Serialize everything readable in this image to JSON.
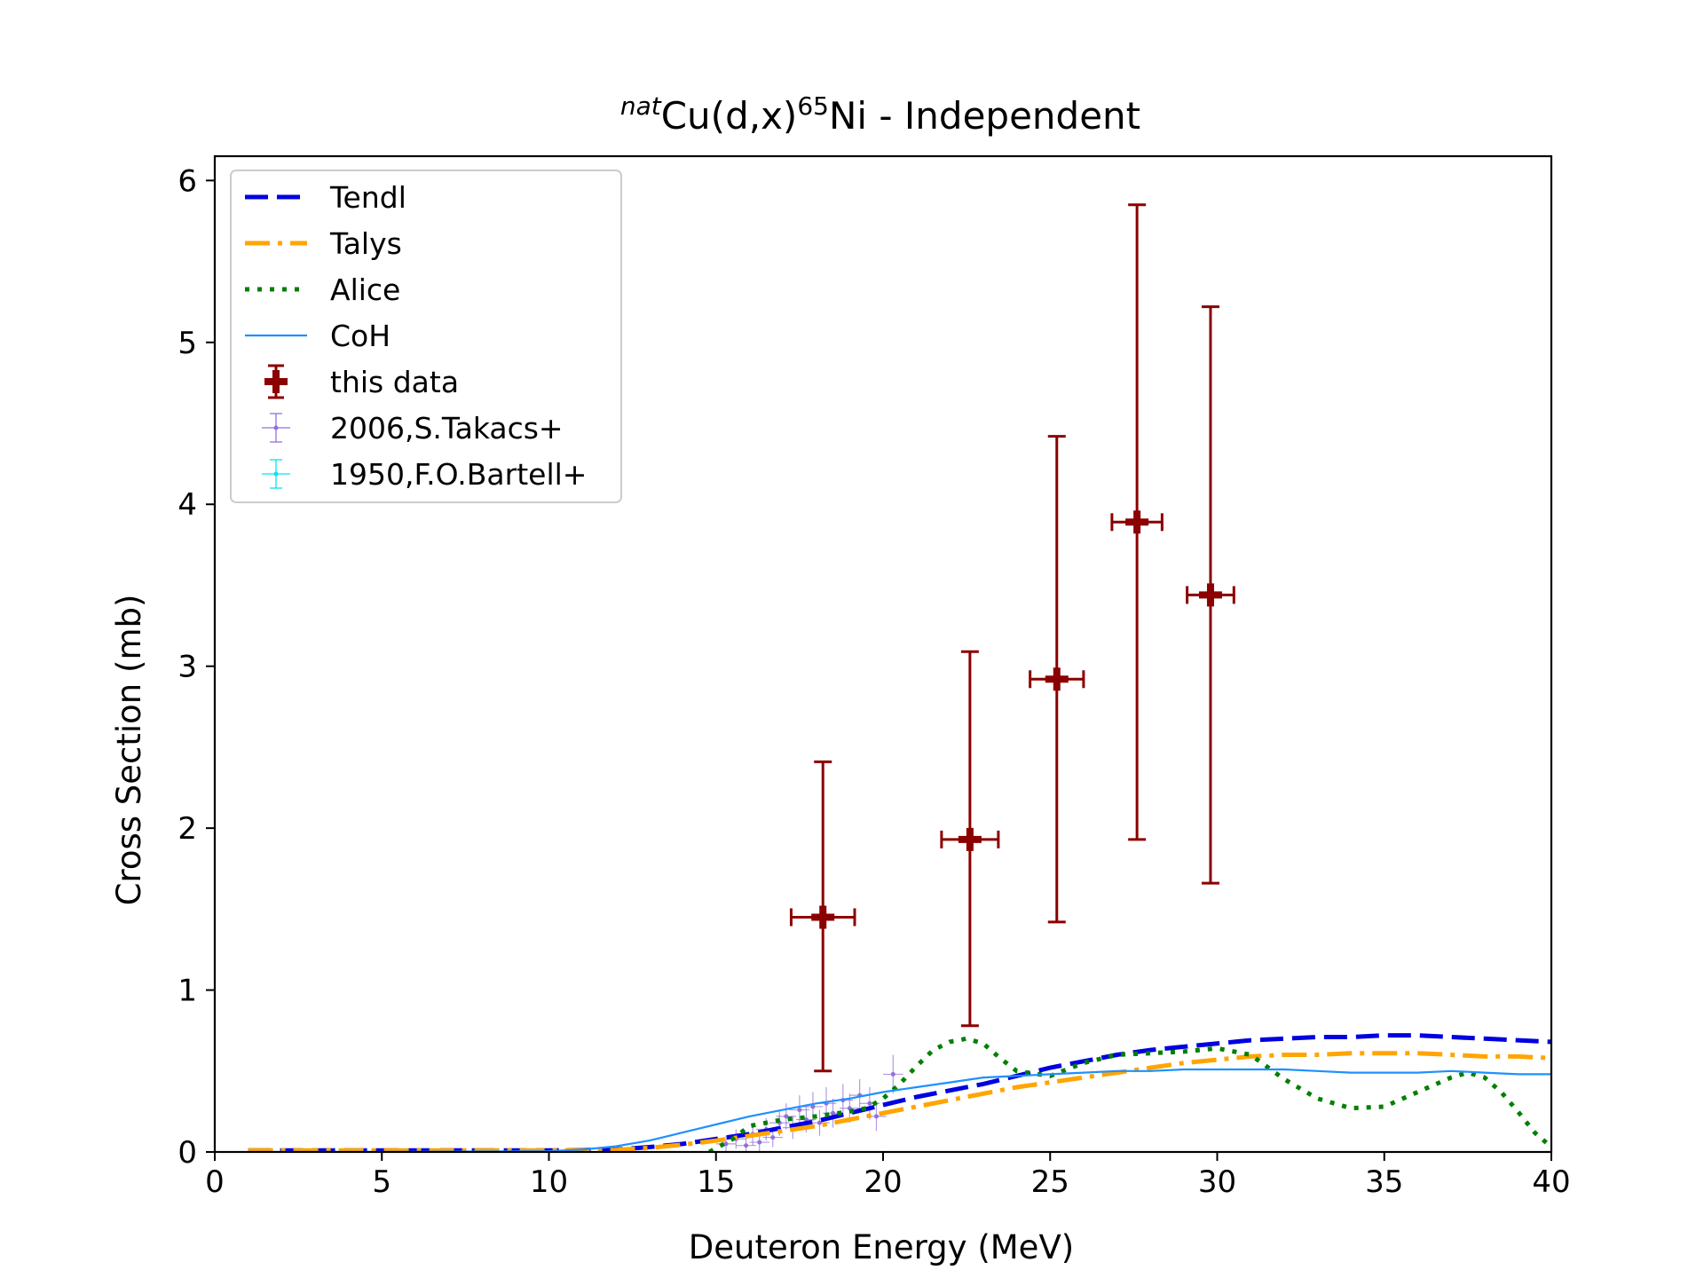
{
  "chart_data": {
    "type": "scatter",
    "title": {
      "prefix": "nat",
      "main": "Cu(d,x)",
      "mass": "65",
      "element": "Ni",
      "suffix": " - Independent"
    },
    "xlabel": "Deuteron Energy (MeV)",
    "ylabel": "Cross Section (mb)",
    "xlim": [
      0,
      40
    ],
    "ylim": [
      0,
      6.15
    ],
    "xticks": [
      0,
      5,
      10,
      15,
      20,
      25,
      30,
      35,
      40
    ],
    "yticks": [
      0,
      1,
      2,
      3,
      4,
      5,
      6
    ],
    "grid": false,
    "legend_position": "top-left",
    "series": [
      {
        "name": "Tendl",
        "kind": "line",
        "style": "dashed",
        "color": "#0000e0",
        "x": [
          1,
          5,
          10,
          12,
          13,
          14,
          15,
          16,
          17,
          18,
          19,
          20,
          21,
          22,
          23,
          24,
          25,
          26,
          27,
          28,
          29,
          30,
          31,
          32,
          33,
          34,
          35,
          36,
          37,
          38,
          39,
          40
        ],
        "y": [
          0.01,
          0.01,
          0.01,
          0.015,
          0.03,
          0.05,
          0.08,
          0.11,
          0.15,
          0.19,
          0.24,
          0.29,
          0.34,
          0.38,
          0.42,
          0.47,
          0.52,
          0.56,
          0.6,
          0.63,
          0.65,
          0.67,
          0.69,
          0.7,
          0.71,
          0.71,
          0.72,
          0.72,
          0.71,
          0.7,
          0.69,
          0.68
        ]
      },
      {
        "name": "Talys",
        "kind": "line",
        "style": "dashdot",
        "color": "#ffa500",
        "x": [
          1,
          5,
          10,
          12,
          13,
          14,
          15,
          16,
          17,
          18,
          19,
          20,
          21,
          22,
          23,
          24,
          25,
          26,
          27,
          28,
          29,
          30,
          31,
          32,
          33,
          34,
          35,
          36,
          37,
          38,
          39,
          40
        ],
        "y": [
          0.01,
          0.01,
          0.01,
          0.012,
          0.025,
          0.045,
          0.07,
          0.1,
          0.13,
          0.16,
          0.2,
          0.24,
          0.28,
          0.32,
          0.36,
          0.4,
          0.43,
          0.46,
          0.49,
          0.52,
          0.55,
          0.57,
          0.59,
          0.6,
          0.6,
          0.61,
          0.61,
          0.61,
          0.6,
          0.59,
          0.59,
          0.58
        ]
      },
      {
        "name": "Alice",
        "kind": "line",
        "style": "dotted",
        "color": "#008000",
        "x": [
          14.8,
          15.5,
          16,
          17,
          18,
          19,
          19.5,
          20,
          20.5,
          21,
          21.5,
          22,
          22.5,
          23,
          23.5,
          24,
          25,
          26,
          27,
          28,
          29,
          30,
          31,
          32,
          33,
          34,
          35,
          36,
          37,
          37.5,
          38,
          38.5,
          39,
          39.5,
          40
        ],
        "y": [
          0.0,
          0.08,
          0.16,
          0.2,
          0.22,
          0.25,
          0.27,
          0.33,
          0.42,
          0.53,
          0.63,
          0.68,
          0.7,
          0.67,
          0.58,
          0.5,
          0.47,
          0.55,
          0.6,
          0.61,
          0.62,
          0.64,
          0.6,
          0.45,
          0.33,
          0.27,
          0.28,
          0.37,
          0.46,
          0.49,
          0.46,
          0.37,
          0.25,
          0.12,
          0.03
        ]
      },
      {
        "name": "CoH",
        "kind": "line",
        "style": "solid",
        "color": "#1e90ff",
        "x": [
          1,
          5,
          10,
          11,
          12,
          13,
          14,
          15,
          16,
          17,
          18,
          19,
          20,
          21,
          22,
          23,
          24,
          25,
          26,
          27,
          28,
          29,
          30,
          31,
          32,
          33,
          34,
          35,
          36,
          37,
          38,
          39,
          40
        ],
        "y": [
          0.0,
          0.0,
          0.005,
          0.015,
          0.035,
          0.07,
          0.12,
          0.17,
          0.22,
          0.26,
          0.3,
          0.33,
          0.37,
          0.4,
          0.43,
          0.46,
          0.47,
          0.48,
          0.49,
          0.5,
          0.5,
          0.51,
          0.51,
          0.51,
          0.51,
          0.5,
          0.49,
          0.49,
          0.49,
          0.5,
          0.49,
          0.48,
          0.48
        ]
      },
      {
        "name": "this data",
        "kind": "errorbar",
        "color": "#8b0000",
        "points": [
          {
            "x": 18.2,
            "y": 1.45,
            "xerr": 0.95,
            "yerr_low": 0.95,
            "yerr_high": 0.96
          },
          {
            "x": 22.6,
            "y": 1.93,
            "xerr": 0.85,
            "yerr_low": 1.15,
            "yerr_high": 1.16
          },
          {
            "x": 25.2,
            "y": 2.92,
            "xerr": 0.8,
            "yerr_low": 1.5,
            "yerr_high": 1.5
          },
          {
            "x": 27.6,
            "y": 3.89,
            "xerr": 0.75,
            "yerr_low": 1.96,
            "yerr_high": 1.96
          },
          {
            "x": 29.8,
            "y": 3.44,
            "xerr": 0.7,
            "yerr_low": 1.78,
            "yerr_high": 1.78
          }
        ]
      },
      {
        "name": "2006,S.Takacs+",
        "kind": "errorbar",
        "color": "#9370db",
        "points": [
          {
            "x": 15.3,
            "y": 0.05,
            "xerr": 0.3,
            "yerr": 0.05
          },
          {
            "x": 15.6,
            "y": 0.08,
            "xerr": 0.3,
            "yerr": 0.06
          },
          {
            "x": 15.9,
            "y": 0.04,
            "xerr": 0.3,
            "yerr": 0.05
          },
          {
            "x": 16.1,
            "y": 0.11,
            "xerr": 0.3,
            "yerr": 0.07
          },
          {
            "x": 16.3,
            "y": 0.06,
            "xerr": 0.3,
            "yerr": 0.06
          },
          {
            "x": 16.5,
            "y": 0.14,
            "xerr": 0.3,
            "yerr": 0.07
          },
          {
            "x": 16.7,
            "y": 0.09,
            "xerr": 0.3,
            "yerr": 0.06
          },
          {
            "x": 16.9,
            "y": 0.18,
            "xerr": 0.3,
            "yerr": 0.08
          },
          {
            "x": 17.1,
            "y": 0.22,
            "xerr": 0.3,
            "yerr": 0.08
          },
          {
            "x": 17.3,
            "y": 0.15,
            "xerr": 0.3,
            "yerr": 0.07
          },
          {
            "x": 17.5,
            "y": 0.26,
            "xerr": 0.3,
            "yerr": 0.09
          },
          {
            "x": 17.7,
            "y": 0.2,
            "xerr": 0.3,
            "yerr": 0.08
          },
          {
            "x": 17.9,
            "y": 0.28,
            "xerr": 0.3,
            "yerr": 0.09
          },
          {
            "x": 18.1,
            "y": 0.18,
            "xerr": 0.3,
            "yerr": 0.08
          },
          {
            "x": 18.3,
            "y": 0.3,
            "xerr": 0.3,
            "yerr": 0.1
          },
          {
            "x": 18.5,
            "y": 0.24,
            "xerr": 0.3,
            "yerr": 0.09
          },
          {
            "x": 18.8,
            "y": 0.32,
            "xerr": 0.3,
            "yerr": 0.1
          },
          {
            "x": 19.0,
            "y": 0.27,
            "xerr": 0.3,
            "yerr": 0.09
          },
          {
            "x": 19.3,
            "y": 0.35,
            "xerr": 0.3,
            "yerr": 0.1
          },
          {
            "x": 19.6,
            "y": 0.3,
            "xerr": 0.3,
            "yerr": 0.1
          },
          {
            "x": 19.8,
            "y": 0.22,
            "xerr": 0.3,
            "yerr": 0.09
          },
          {
            "x": 20.3,
            "y": 0.48,
            "xerr": 0.3,
            "yerr": 0.12
          }
        ]
      },
      {
        "name": "1950,F.O.Bartell+",
        "kind": "errorbar",
        "color": "#00e5ee",
        "points": []
      }
    ]
  }
}
